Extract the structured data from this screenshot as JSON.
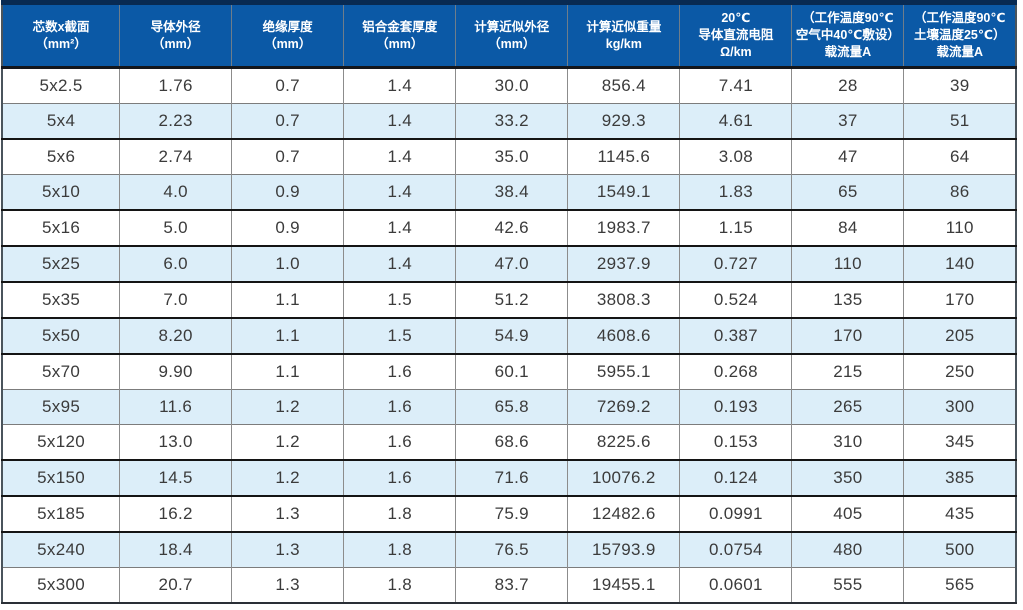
{
  "table": {
    "name": "aluminium-alloy-cable-specification-table",
    "headers": [
      {
        "lines": [
          "芯数x截面",
          "（mm²）"
        ]
      },
      {
        "lines": [
          "导体外径",
          "（mm）"
        ]
      },
      {
        "lines": [
          "绝缘厚度",
          "（mm）"
        ]
      },
      {
        "lines": [
          "铝合金套厚度",
          "（mm）"
        ]
      },
      {
        "lines": [
          "计算近似外径",
          "（mm）"
        ]
      },
      {
        "lines": [
          "计算近似重量",
          "kg/km"
        ]
      },
      {
        "lines": [
          "20℃",
          "导体直流电阻",
          "Ω/km"
        ]
      },
      {
        "lines": [
          "（工作温度90℃",
          "空气中40℃敷设）",
          "载流量A"
        ]
      },
      {
        "lines": [
          "（工作温度90℃",
          "土壤温度25℃）",
          "载流量A"
        ]
      }
    ],
    "rows": [
      {
        "cells": [
          "5x2.5",
          "1.76",
          "0.7",
          "1.4",
          "30.0",
          "856.4",
          "7.41",
          "28",
          "39"
        ],
        "thick_border_below": false
      },
      {
        "cells": [
          "5x4",
          "2.23",
          "0.7",
          "1.4",
          "33.2",
          "929.3",
          "4.61",
          "37",
          "51"
        ],
        "thick_border_below": true
      },
      {
        "cells": [
          "5x6",
          "2.74",
          "0.7",
          "1.4",
          "35.0",
          "1145.6",
          "3.08",
          "47",
          "64"
        ],
        "thick_border_below": false
      },
      {
        "cells": [
          "5x10",
          "4.0",
          "0.9",
          "1.4",
          "38.4",
          "1549.1",
          "1.83",
          "65",
          "86"
        ],
        "thick_border_below": true
      },
      {
        "cells": [
          "5x16",
          "5.0",
          "0.9",
          "1.4",
          "42.6",
          "1983.7",
          "1.15",
          "84",
          "110"
        ],
        "thick_border_below": true
      },
      {
        "cells": [
          "5x25",
          "6.0",
          "1.0",
          "1.4",
          "47.0",
          "2937.9",
          "0.727",
          "110",
          "140"
        ],
        "thick_border_below": true
      },
      {
        "cells": [
          "5x35",
          "7.0",
          "1.1",
          "1.5",
          "51.2",
          "3808.3",
          "0.524",
          "135",
          "170"
        ],
        "thick_border_below": true
      },
      {
        "cells": [
          "5x50",
          "8.20",
          "1.1",
          "1.5",
          "54.9",
          "4608.6",
          "0.387",
          "170",
          "205"
        ],
        "thick_border_below": true
      },
      {
        "cells": [
          "5x70",
          "9.90",
          "1.1",
          "1.6",
          "60.1",
          "5955.1",
          "0.268",
          "215",
          "250"
        ],
        "thick_border_below": false
      },
      {
        "cells": [
          "5x95",
          "11.6",
          "1.2",
          "1.6",
          "65.8",
          "7269.2",
          "0.193",
          "265",
          "300"
        ],
        "thick_border_below": false
      },
      {
        "cells": [
          "5x120",
          "13.0",
          "1.2",
          "1.6",
          "68.6",
          "8225.6",
          "0.153",
          "310",
          "345"
        ],
        "thick_border_below": true
      },
      {
        "cells": [
          "5x150",
          "14.5",
          "1.2",
          "1.6",
          "71.6",
          "10076.2",
          "0.124",
          "350",
          "385"
        ],
        "thick_border_below": true
      },
      {
        "cells": [
          "5x185",
          "16.2",
          "1.3",
          "1.8",
          "75.9",
          "12482.6",
          "0.0991",
          "405",
          "435"
        ],
        "thick_border_below": true
      },
      {
        "cells": [
          "5x240",
          "18.4",
          "1.3",
          "1.8",
          "76.5",
          "15793.9",
          "0.0754",
          "480",
          "500"
        ],
        "thick_border_below": false
      },
      {
        "cells": [
          "5x300",
          "20.7",
          "1.3",
          "1.8",
          "83.7",
          "19455.1",
          "0.0601",
          "555",
          "565"
        ],
        "thick_border_below": false
      }
    ],
    "colors": {
      "header_background": "#0b59a6",
      "header_text": "#ffffff",
      "row_background": "#ffffff",
      "row_alt_background": "#dceef9",
      "cell_text": "#3b3b3b",
      "grid_line": "#8c8c8c",
      "thick_separator": "#141414",
      "outer_top_border": "#082a52"
    }
  }
}
